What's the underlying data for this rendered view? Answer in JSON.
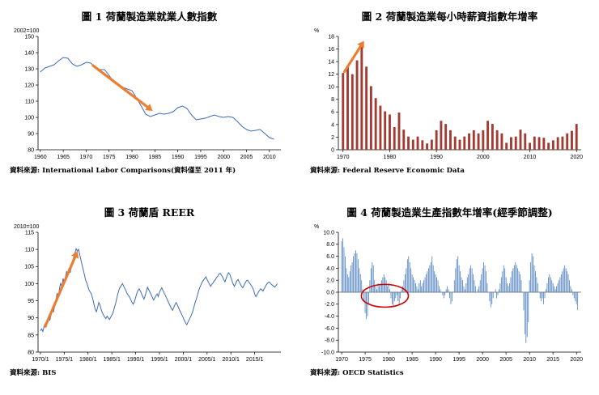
{
  "chart_data": [
    {
      "type": "line",
      "title": "圖 1  荷蘭製造業就業人數指數",
      "unit_label": "2002=100",
      "source": "資料來源: International Labor Comparisons(資料僅至 2011 年)",
      "color": "#3F6CB5",
      "x_start": 1960,
      "x_step": 1,
      "xlim": [
        1959.5,
        2012.5
      ],
      "ylim": [
        80,
        150
      ],
      "ytick_step": 10,
      "ytick_decimals": 0,
      "xticks": [
        1960,
        1965,
        1970,
        1975,
        1980,
        1985,
        1990,
        1995,
        2000,
        2005,
        2010
      ],
      "values": [
        128,
        130.5,
        131.5,
        132.5,
        135,
        137,
        136.5,
        133,
        131.5,
        132.5,
        134,
        133.5,
        131,
        129.5,
        129.5,
        126,
        122,
        120,
        118.5,
        117.5,
        116.5,
        112,
        107,
        102,
        100.5,
        101.5,
        102.5,
        102,
        102.5,
        103.5,
        106,
        107,
        105.5,
        101.5,
        98.5,
        99,
        99.5,
        100.5,
        101.5,
        100.5,
        100,
        100.5,
        100,
        97.5,
        94.5,
        92.5,
        91.5,
        92,
        92.5,
        90,
        87.5,
        86.5
      ],
      "annotation": {
        "type": "arrow",
        "from": [
          1971.5,
          132
        ],
        "to": [
          1984.5,
          104
        ],
        "color": "#ED7D31"
      }
    },
    {
      "type": "bar",
      "title": "圖 2  荷蘭製造業每小時薪資指數年增率",
      "unit_label": "%",
      "source": "資料來源: Federal Reserve Economic Data",
      "color": "#A33B33",
      "x_start": 1970,
      "x_step": 1,
      "xlim": [
        1969,
        2021
      ],
      "ylim": [
        0,
        18
      ],
      "ytick_step": 2,
      "ytick_decimals": 0,
      "xticks": [
        1970,
        1980,
        1990,
        2000,
        2010,
        2020
      ],
      "values": [
        12.2,
        13.4,
        12.0,
        14.2,
        16.6,
        13.2,
        10.1,
        8.2,
        7.0,
        6.1,
        5.6,
        3.6,
        5.9,
        3.2,
        2.1,
        1.6,
        2.1,
        1.5,
        1.0,
        1.6,
        3.1,
        4.6,
        4.1,
        3.1,
        2.1,
        1.6,
        2.1,
        2.6,
        3.1,
        2.6,
        3.1,
        4.6,
        4.1,
        3.1,
        2.6,
        1.1,
        2.0,
        2.1,
        3.2,
        2.6,
        1.1,
        2.1,
        2.0,
        1.9,
        1.1,
        1.5,
        2.0,
        2.1,
        2.6,
        3.0,
        4.1
      ],
      "annotation": {
        "type": "arrow",
        "from": [
          1970.3,
          12.4
        ],
        "to": [
          1974.5,
          17.3
        ],
        "color": "#ED7D31"
      }
    },
    {
      "type": "line",
      "title": "圖 3  荷蘭盾 REER",
      "unit_label": "2010=100",
      "source": "資料來源: BIS",
      "color": "#3F6CB5",
      "x_start": 1970,
      "x_step": 0.25,
      "xlim": [
        1969.5,
        2020.5
      ],
      "ylim": [
        80,
        115
      ],
      "ytick_step": 5,
      "ytick_decimals": 0,
      "xticks": [
        1970,
        1975,
        1980,
        1985,
        1990,
        1995,
        2000,
        2005,
        2010,
        2015
      ],
      "xtick_labels": [
        "1970/1",
        "1975/1",
        "1980/1",
        "1985/1",
        "1990/1",
        "1995/1",
        "2000/1",
        "2005/1",
        "2010/1",
        "2015/1"
      ],
      "values": [
        86.2,
        86.8,
        86.0,
        87.5,
        88.3,
        87.6,
        89.0,
        90.2,
        89.4,
        91.0,
        92.5,
        91.8,
        93.5,
        95.0,
        97.2,
        96.0,
        98.5,
        100.2,
        99.0,
        101.5,
        100.3,
        102.0,
        103.5,
        102.8,
        104.5,
        103.2,
        105.0,
        106.5,
        107.8,
        109.0,
        110.2,
        109.5,
        110.0,
        108.5,
        107.0,
        105.5,
        104.0,
        102.5,
        101.0,
        100.2,
        99.0,
        98.0,
        97.5,
        96.8,
        95.5,
        94.0,
        92.5,
        91.8,
        93.0,
        94.5,
        93.8,
        92.5,
        91.5,
        90.8,
        90.2,
        89.8,
        90.5,
        90.0,
        89.5,
        90.2,
        90.8,
        91.5,
        92.8,
        94.0,
        95.5,
        97.0,
        98.2,
        99.0,
        99.5,
        100.0,
        99.2,
        98.5,
        97.8,
        97.0,
        96.5,
        96.0,
        95.2,
        94.5,
        94.0,
        94.8,
        96.0,
        97.2,
        98.0,
        98.5,
        97.8,
        97.0,
        96.2,
        95.5,
        96.5,
        97.8,
        99.0,
        98.2,
        97.5,
        96.8,
        96.0,
        95.2,
        95.8,
        96.5,
        97.0,
        96.2,
        97.5,
        98.2,
        98.8,
        98.0,
        97.2,
        96.5,
        95.8,
        95.0,
        94.2,
        93.5,
        92.8,
        92.2,
        93.0,
        93.8,
        94.5,
        93.8,
        93.0,
        92.2,
        91.5,
        90.8,
        90.0,
        89.2,
        88.5,
        88.0,
        88.8,
        89.5,
        90.2,
        91.0,
        92.0,
        93.2,
        94.5,
        95.5,
        96.8,
        98.0,
        99.0,
        99.8,
        100.5,
        101.0,
        101.5,
        102.0,
        101.2,
        100.5,
        99.8,
        99.2,
        99.8,
        100.2,
        100.8,
        101.2,
        101.8,
        102.2,
        102.8,
        103.0,
        102.5,
        102.0,
        101.2,
        100.5,
        101.5,
        102.5,
        103.2,
        102.8,
        101.8,
        100.8,
        99.8,
        99.2,
        100.0,
        100.8,
        101.2,
        100.5,
        99.8,
        99.2,
        98.8,
        99.5,
        100.2,
        100.8,
        101.0,
        100.5,
        100.0,
        99.5,
        99.0,
        98.2,
        97.0,
        96.2,
        96.8,
        97.5,
        98.0,
        98.5,
        98.2,
        97.8,
        98.5,
        99.2,
        99.8,
        100.2,
        100.5,
        100.2,
        99.8,
        99.5,
        99.2,
        99.0,
        99.5,
        100.0
      ],
      "annotation": {
        "type": "arrow",
        "from": [
          1971,
          87.5
        ],
        "to": [
          1977.8,
          109.5
        ],
        "color": "#ED7D31"
      }
    },
    {
      "type": "bar",
      "title": "圖 4  荷蘭製造業生產指數年增率(經季節調整)",
      "unit_label": "%",
      "source": "資料來源: OECD Statistics",
      "color": "#4F81BD",
      "x_start": 1970,
      "x_step": 0.25,
      "xlim": [
        1969.3,
        2021
      ],
      "ylim": [
        -10,
        10
      ],
      "ytick_step": 2,
      "ytick_decimals": 1,
      "xticks": [
        1970,
        1975,
        1980,
        1985,
        1990,
        1995,
        2000,
        2005,
        2010,
        2015,
        2020
      ],
      "values": [
        8.5,
        9.0,
        7.5,
        6.0,
        4.0,
        3.0,
        2.5,
        3.5,
        4.5,
        5.0,
        6.0,
        6.5,
        7.0,
        6.5,
        5.5,
        4.0,
        3.0,
        2.0,
        0.5,
        -1.5,
        -3.5,
        -4.5,
        -4.0,
        -2.0,
        2.0,
        4.0,
        5.0,
        4.5,
        2.0,
        1.0,
        0.5,
        1.5,
        1.0,
        1.5,
        2.0,
        2.5,
        3.0,
        2.5,
        2.0,
        1.0,
        1.5,
        0.5,
        -1.0,
        -2.0,
        -2.5,
        -1.5,
        -1.0,
        -0.5,
        -1.5,
        -2.0,
        -1.0,
        0.5,
        1.0,
        2.0,
        3.0,
        4.0,
        5.5,
        6.0,
        5.0,
        4.0,
        3.0,
        2.5,
        2.0,
        1.5,
        1.0,
        0.5,
        1.5,
        2.0,
        1.0,
        1.5,
        2.0,
        2.5,
        3.0,
        3.5,
        4.0,
        4.5,
        5.0,
        6.0,
        4.5,
        3.5,
        3.0,
        2.5,
        2.0,
        1.0,
        0.5,
        0.0,
        -0.5,
        -1.0,
        -0.5,
        0.5,
        1.0,
        0.5,
        -1.0,
        -2.0,
        -1.5,
        0.0,
        2.0,
        4.0,
        5.5,
        6.0,
        4.5,
        3.5,
        2.5,
        2.0,
        1.0,
        0.5,
        1.5,
        2.5,
        3.0,
        4.0,
        4.5,
        4.0,
        3.0,
        2.0,
        1.0,
        0.0,
        0.5,
        1.0,
        2.0,
        3.0,
        4.0,
        5.0,
        4.5,
        3.5,
        1.5,
        0.0,
        -1.5,
        -2.5,
        -2.0,
        -1.0,
        0.0,
        0.5,
        -1.0,
        -0.5,
        0.5,
        1.5,
        2.5,
        3.5,
        4.5,
        4.0,
        2.5,
        1.5,
        1.0,
        1.5,
        2.5,
        3.5,
        4.0,
        4.5,
        5.0,
        4.5,
        4.0,
        3.5,
        3.0,
        2.0,
        0.0,
        -3.0,
        -7.0,
        -8.5,
        -7.5,
        -5.0,
        2.0,
        5.0,
        6.5,
        6.0,
        4.5,
        3.5,
        2.5,
        1.5,
        0.0,
        -1.0,
        -1.5,
        -1.0,
        -2.0,
        -1.0,
        0.5,
        1.5,
        2.5,
        3.0,
        2.5,
        2.0,
        1.5,
        1.0,
        0.5,
        1.0,
        1.5,
        2.0,
        2.5,
        3.0,
        3.5,
        4.0,
        4.5,
        4.0,
        3.5,
        3.0,
        2.0,
        1.0,
        0.5,
        -0.5,
        -1.0,
        -1.5,
        -2.0,
        -3.0
      ],
      "annotation": {
        "type": "ellipse",
        "cx": 1979.2,
        "cy": -0.6,
        "rx": 5.0,
        "ry": 1.9,
        "color": "#CC0000"
      }
    }
  ]
}
